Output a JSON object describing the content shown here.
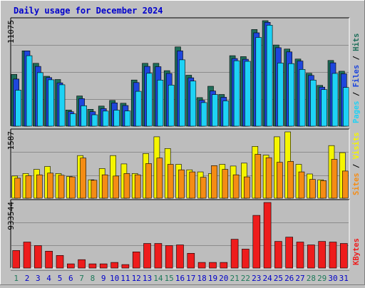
{
  "header": {
    "title": "Daily usage for December 2024"
  },
  "colors": {
    "background": "#c0c0c0",
    "plot_background": "#bdbdbd",
    "hits": "#1e6e5a",
    "files": "#1e46dc",
    "pages": "#1ed2f5",
    "visits": "#f5f500",
    "sites": "#f58c14",
    "kbytes": "#ee1c1c",
    "weekend_day": "#1e7a5a",
    "weekday": "#0000c8"
  },
  "chart_data": [
    {
      "type": "bar",
      "title": "Daily usage for December 2024",
      "ylabel_max": "11075",
      "legend": [
        "Pages",
        "Files",
        "Hits"
      ],
      "x": [
        1,
        2,
        3,
        4,
        5,
        6,
        7,
        8,
        9,
        10,
        11,
        12,
        13,
        14,
        15,
        16,
        17,
        18,
        19,
        20,
        21,
        22,
        23,
        24,
        25,
        26,
        27,
        28,
        29,
        30,
        31
      ],
      "series": [
        {
          "name": "Hits",
          "values": [
            5430,
            7910,
            6600,
            5240,
            4900,
            1700,
            3170,
            1770,
            2110,
            2700,
            2410,
            4850,
            6600,
            6600,
            5830,
            8320,
            5350,
            3000,
            4190,
            3330,
            7400,
            7300,
            10150,
            11075,
            8520,
            8100,
            7050,
            5550,
            4280,
            6900,
            5770
          ]
        },
        {
          "name": "Files",
          "values": [
            4950,
            7910,
            6280,
            5100,
            4550,
            1520,
            2890,
            1520,
            1850,
            2450,
            2170,
            4580,
            6280,
            6250,
            5540,
            7900,
            5080,
            2720,
            3700,
            3040,
            7100,
            7030,
            9800,
            10900,
            8240,
            7800,
            6840,
            5330,
            4100,
            6650,
            5500
          ]
        },
        {
          "name": "Pages",
          "values": [
            3780,
            7400,
            5620,
            4870,
            4350,
            1300,
            2150,
            1200,
            1590,
            1680,
            1600,
            3660,
            5550,
            4840,
            4320,
            6970,
            4740,
            2480,
            3320,
            2660,
            6870,
            6810,
            9320,
            10600,
            6630,
            6570,
            5960,
            4840,
            3840,
            5540,
            4060
          ]
        }
      ]
    },
    {
      "type": "bar",
      "ylabel_max": "1587",
      "legend": [
        "Sites",
        "Visits"
      ],
      "x": [
        1,
        2,
        3,
        4,
        5,
        6,
        7,
        8,
        9,
        10,
        11,
        12,
        13,
        14,
        15,
        16,
        17,
        18,
        19,
        20,
        21,
        22,
        23,
        24,
        25,
        26,
        27,
        28,
        29,
        30,
        31
      ],
      "series": [
        {
          "name": "Visits",
          "values": [
            530,
            590,
            690,
            760,
            590,
            520,
            1020,
            440,
            710,
            1020,
            820,
            590,
            1070,
            1470,
            1190,
            810,
            680,
            630,
            590,
            810,
            770,
            840,
            1240,
            1030,
            1470,
            1587,
            810,
            580,
            440,
            1260,
            1090
          ]
        },
        {
          "name": "Sites",
          "values": [
            480,
            540,
            560,
            600,
            550,
            510,
            960,
            430,
            560,
            530,
            590,
            560,
            830,
            960,
            810,
            680,
            630,
            500,
            780,
            690,
            560,
            510,
            1050,
            970,
            860,
            880,
            630,
            450,
            420,
            930,
            650
          ]
        }
      ]
    },
    {
      "type": "bar",
      "ylabel_max": "933544",
      "legend": [
        "KBytes"
      ],
      "x": [
        1,
        2,
        3,
        4,
        5,
        6,
        7,
        8,
        9,
        10,
        11,
        12,
        13,
        14,
        15,
        16,
        17,
        18,
        19,
        20,
        21,
        22,
        23,
        24,
        25,
        26,
        27,
        28,
        29,
        30,
        31
      ],
      "series": [
        {
          "name": "KBytes",
          "values": [
            250000,
            370000,
            320000,
            240000,
            180000,
            60000,
            120000,
            60000,
            60000,
            80000,
            50000,
            230000,
            350000,
            350000,
            320000,
            330000,
            210000,
            80000,
            80000,
            80000,
            410000,
            270000,
            750000,
            933544,
            380000,
            440000,
            370000,
            330000,
            380000,
            370000,
            350000
          ]
        }
      ]
    }
  ],
  "x_labels": {
    "days": [
      "1",
      "2",
      "3",
      "4",
      "5",
      "6",
      "7",
      "8",
      "9",
      "10",
      "11",
      "12",
      "13",
      "14",
      "15",
      "16",
      "17",
      "18",
      "19",
      "20",
      "21",
      "22",
      "23",
      "24",
      "25",
      "26",
      "27",
      "28",
      "29",
      "30",
      "31"
    ],
    "weekend": [
      1,
      7,
      8,
      14,
      15,
      21,
      22,
      28,
      29
    ]
  }
}
